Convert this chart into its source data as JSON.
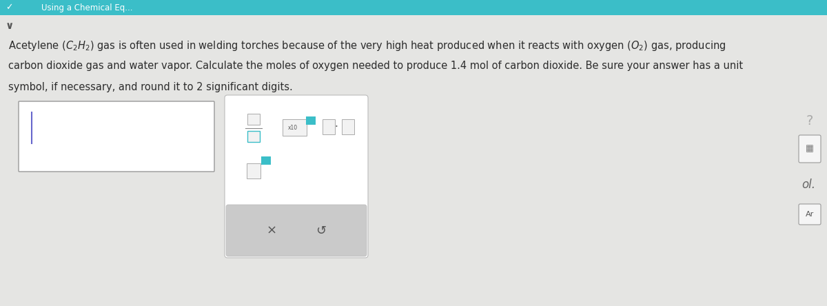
{
  "bg_color": "#e5e5e3",
  "header_color": "#3bbec8",
  "header_text": "Using a Chemical Eq...",
  "header_text_color": "#ffffff",
  "text_color": "#2c2c2c",
  "text_fontsize": 10.5,
  "teal_color": "#3bbec8",
  "cursor_color": "#6666cc",
  "answer_box_color": "#ffffff",
  "answer_box_border": "#999999",
  "math_panel_color": "#ffffff",
  "math_panel_border": "#bbbbbb",
  "button_bar_color": "#cacaca",
  "icon_color": "#666666",
  "question_mark_color": "#aaaaaa",
  "line1": "Acetylene $(C_2H_2)$ gas is often used in welding torches because of the very high heat produced when it reacts with oxygen $(O_2)$ gas, producing",
  "line2": "carbon dioxide gas and water vapor. Calculate the moles of oxygen needed to produce 1.4 mol of carbon dioxide. Be sure your answer has a unit",
  "line3": "symbol, if necessary, and round it to 2 significant digits."
}
